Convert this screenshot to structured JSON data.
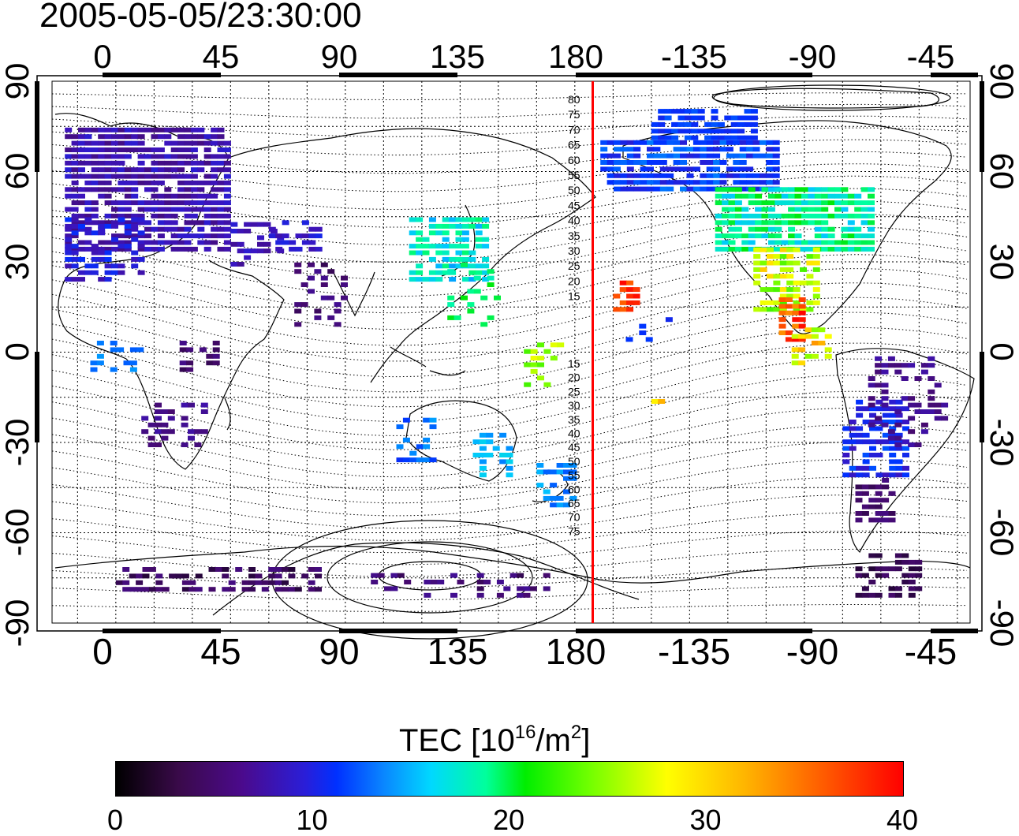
{
  "timestamp": "2005-05-05/23:30:00",
  "map": {
    "top_ticks": [
      "0",
      "45",
      "90",
      "135",
      "180",
      "-135",
      "-90",
      "-45"
    ],
    "bottom_ticks": [
      "0",
      "45",
      "90",
      "135",
      "180",
      "-135",
      "-90",
      "-45"
    ],
    "left_ticks": [
      "90",
      "60",
      "30",
      "0",
      "-30",
      "-60",
      "-90"
    ],
    "right_ticks": [
      "90",
      "60",
      "30",
      "0",
      "-30",
      "-60",
      "-90"
    ],
    "meridian_longitude": 187,
    "meridian_color": "#ff0000",
    "contour_labels_north": [
      "80",
      "75",
      "70",
      "65",
      "60",
      "55",
      "50",
      "45",
      "40",
      "35",
      "30",
      "25",
      "20",
      "15"
    ],
    "contour_labels_south": [
      "15",
      "20",
      "25",
      "30",
      "35",
      "40",
      "45",
      "50",
      "55",
      "60",
      "65",
      "70",
      "75"
    ]
  },
  "colorbar": {
    "title": "TEC  [10",
    "title_sup1": "16",
    "title_mid": "/m",
    "title_sup2": "2",
    "title_end": "]",
    "min": 0,
    "max": 40,
    "ticks": [
      "0",
      "10",
      "20",
      "30",
      "40"
    ],
    "colormap_stops": [
      "#000000",
      "#4b0a8c",
      "#0030ff",
      "#00d8ff",
      "#00ee00",
      "#ffff00",
      "#ff0000"
    ]
  }
}
